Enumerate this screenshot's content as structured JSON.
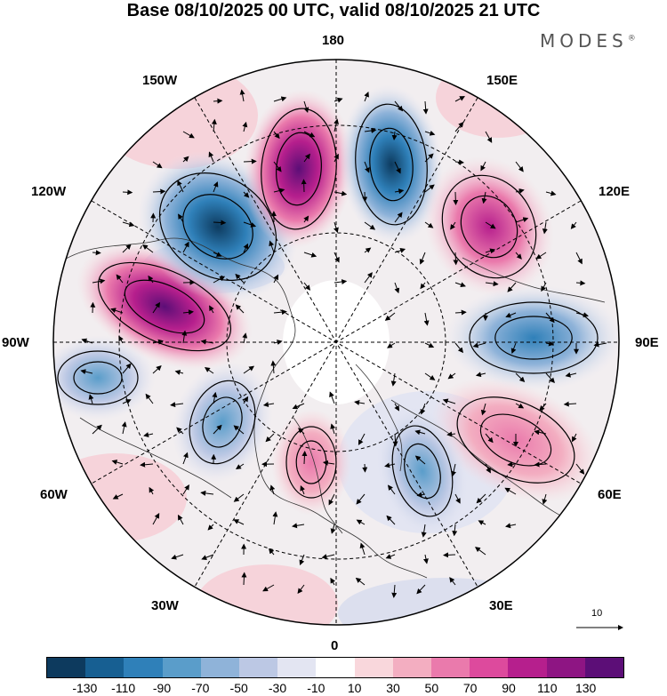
{
  "title": "Base 08/10/2025 00 UTC, valid 08/10/2025 21 UTC",
  "brand": "MODES",
  "brand_mark": "®",
  "longitude_labels": {
    "n180": "180",
    "w150": "150W",
    "e150": "150E",
    "w120": "120W",
    "e120": "120E",
    "w90": "90W",
    "e90": "90E",
    "w60": "60W",
    "e60": "60E",
    "w30": "30W",
    "e30": "30E",
    "zero": "0"
  },
  "reference_vector": "10",
  "colorbar": {
    "colors": [
      "#0d3a5e",
      "#175f92",
      "#2f80b9",
      "#5a9dca",
      "#8fb3d9",
      "#bcc8e4",
      "#e3e5f2",
      "#ffffff",
      "#f9d7dc",
      "#f3aec1",
      "#ea7aac",
      "#dd4a9d",
      "#b61f8d",
      "#8e1583",
      "#5c0e77"
    ],
    "tick_labels": [
      "-130",
      "-110",
      "-90",
      "-70",
      "-50",
      "-30",
      "-10",
      "10",
      "30",
      "50",
      "70",
      "90",
      "110",
      "130"
    ]
  },
  "anomaly_centers": [
    {
      "sign": "positive",
      "level": 6
    },
    {
      "sign": "negative",
      "level": 6
    },
    {
      "sign": "positive",
      "level": 7
    },
    {
      "sign": "negative",
      "level": 6
    },
    {
      "sign": "positive",
      "level": 4
    },
    {
      "sign": "negative",
      "level": 3
    },
    {
      "sign": "positive",
      "level": 3
    },
    {
      "sign": "negative",
      "level": 3
    },
    {
      "sign": "positive",
      "level": 2
    },
    {
      "sign": "negative",
      "level": 3
    },
    {
      "sign": "negative",
      "level": 2
    }
  ]
}
